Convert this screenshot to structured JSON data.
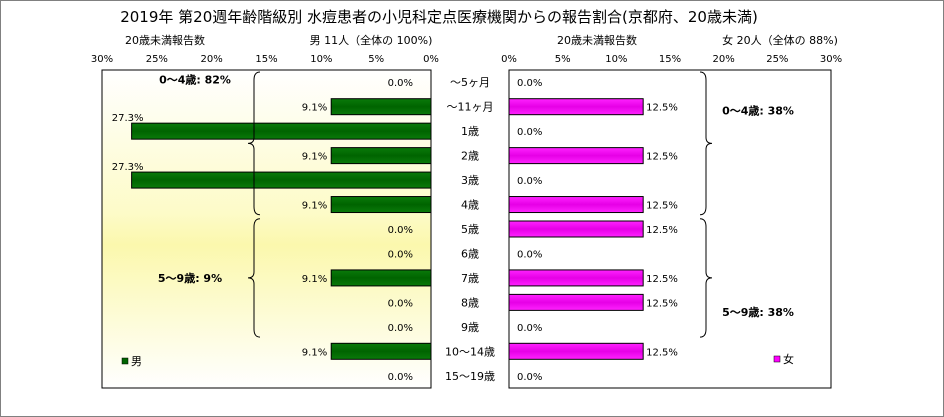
{
  "chart_data": [
    {
      "type": "bar",
      "title": "2019年 第20週年齢階級別 水痘患者の小児科定点医療機関からの報告割合(京都府、20歳未満)",
      "panel_header": "男  11人（全体の  100%)",
      "axis_title": "20歳未満報告数",
      "xlim": [
        0,
        30
      ],
      "ticks": [
        "0%",
        "5%",
        "10%",
        "15%",
        "20%",
        "25%",
        "30%"
      ],
      "tick_values": [
        0,
        5,
        10,
        15,
        20,
        25,
        30
      ],
      "orientation": "left",
      "color": "#008000",
      "categories": [
        "～5ヶ月",
        "～11ヶ月",
        "1歳",
        "2歳",
        "3歳",
        "4歳",
        "5歳",
        "6歳",
        "7歳",
        "8歳",
        "9歳",
        "10～14歳",
        "15～19歳"
      ],
      "values": [
        0.0,
        9.1,
        27.3,
        9.1,
        27.3,
        9.1,
        0.0,
        0.0,
        9.1,
        0.0,
        0.0,
        9.1,
        0.0
      ],
      "labels": [
        "0.0%",
        "9.1%",
        "27.3%",
        "9.1%",
        "27.3%",
        "9.1%",
        "0.0%",
        "0.0%",
        "9.1%",
        "0.0%",
        "0.0%",
        "9.1%",
        "0.0%"
      ],
      "legend": "男",
      "groups": [
        {
          "label": "0～4歳: 82%",
          "from": 0,
          "to": 5
        },
        {
          "label": "5～9歳: 9%",
          "from": 6,
          "to": 10
        }
      ]
    },
    {
      "type": "bar",
      "panel_header": "女  20人（全体の  88%)",
      "axis_title": "20歳未満報告数",
      "xlim": [
        0,
        30
      ],
      "ticks": [
        "0%",
        "5%",
        "10%",
        "15%",
        "20%",
        "25%",
        "30%"
      ],
      "tick_values": [
        0,
        5,
        10,
        15,
        20,
        25,
        30
      ],
      "orientation": "right",
      "color": "#ff00ff",
      "categories": [
        "～5ヶ月",
        "～11ヶ月",
        "1歳",
        "2歳",
        "3歳",
        "4歳",
        "5歳",
        "6歳",
        "7歳",
        "8歳",
        "9歳",
        "10～14歳",
        "15～19歳"
      ],
      "values": [
        0.0,
        12.5,
        0.0,
        12.5,
        0.0,
        12.5,
        12.5,
        0.0,
        12.5,
        12.5,
        0.0,
        12.5,
        0.0
      ],
      "labels": [
        "0.0%",
        "12.5%",
        "0.0%",
        "12.5%",
        "0.0%",
        "12.5%",
        "12.5%",
        "0.0%",
        "12.5%",
        "12.5%",
        "0.0%",
        "12.5%",
        "0.0%"
      ],
      "legend": "女",
      "groups": [
        {
          "label": "0～4歳: 38%",
          "from": 0,
          "to": 5
        },
        {
          "label": "5～9歳: 38%",
          "from": 6,
          "to": 10
        }
      ]
    }
  ]
}
